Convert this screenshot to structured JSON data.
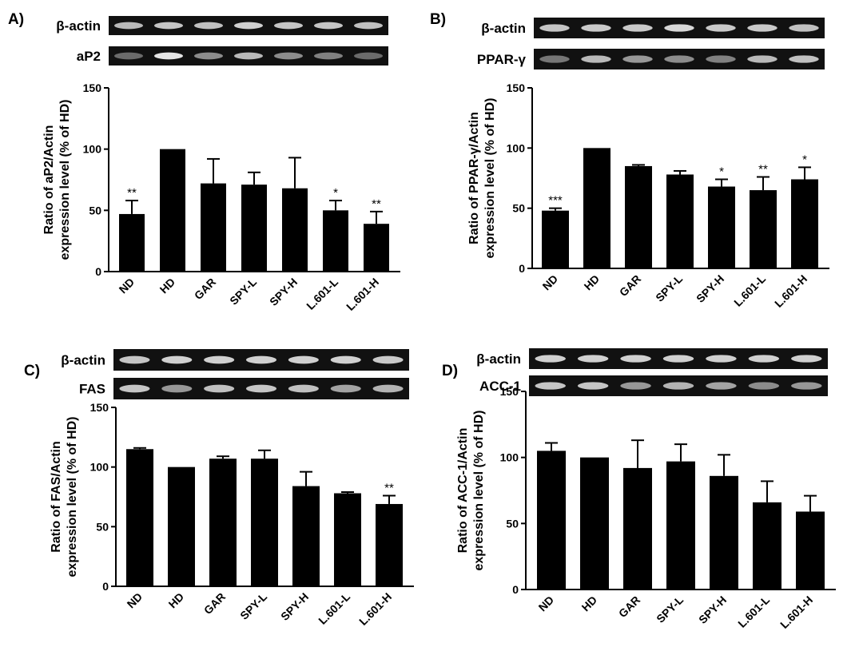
{
  "figure": {
    "gel_band_label_beta_actin": "β-actin",
    "bar_color": "#000000",
    "gel_background": "#111111",
    "band_color": "#f2f2f2"
  },
  "chart_data": [
    {
      "panel": "A)",
      "type": "bar",
      "gel_bands": [
        {
          "label": "β-actin",
          "intensities": [
            0.75,
            0.8,
            0.78,
            0.85,
            0.8,
            0.8,
            0.78
          ]
        },
        {
          "label": "aP2",
          "intensities": [
            0.4,
            0.95,
            0.55,
            0.75,
            0.55,
            0.5,
            0.4
          ]
        }
      ],
      "categories": [
        "ND",
        "HD",
        "GAR",
        "SPY-L",
        "SPY-H",
        "L.601-L",
        "L.601-H"
      ],
      "values": [
        47,
        100,
        72,
        71,
        68,
        50,
        39
      ],
      "errors": [
        11,
        0,
        20,
        10,
        25,
        8,
        10
      ],
      "significance": [
        "**",
        "",
        "",
        "",
        "",
        "*",
        "**"
      ],
      "ylabel_line1": "Ratio of aP2/Actin",
      "ylabel_line2": "expression level (% of HD)",
      "ylim": [
        0,
        150
      ],
      "yticks": [
        0,
        50,
        100,
        150
      ]
    },
    {
      "panel": "B)",
      "type": "bar",
      "gel_bands": [
        {
          "label": "β-actin",
          "intensities": [
            0.8,
            0.82,
            0.82,
            0.88,
            0.82,
            0.82,
            0.78
          ]
        },
        {
          "label": "PPAR-γ",
          "intensities": [
            0.45,
            0.75,
            0.6,
            0.55,
            0.5,
            0.75,
            0.78
          ]
        }
      ],
      "categories": [
        "ND",
        "HD",
        "GAR",
        "SPY-L",
        "SPY-H",
        "L.601-L",
        "L.601-H"
      ],
      "values": [
        48,
        100,
        85,
        78,
        68,
        65,
        74
      ],
      "errors": [
        2,
        0,
        1,
        3,
        6,
        11,
        10
      ],
      "significance": [
        "***",
        "",
        "",
        "",
        "*",
        "**",
        "*"
      ],
      "ylabel_line1": "Ratio of PPAR-γ/Actin",
      "ylabel_line2": "expression level (% of HD)",
      "ylim": [
        0,
        150
      ],
      "yticks": [
        0,
        50,
        100,
        150
      ]
    },
    {
      "panel": "C)",
      "type": "bar",
      "gel_bands": [
        {
          "label": "β-actin",
          "intensities": [
            0.8,
            0.85,
            0.85,
            0.85,
            0.85,
            0.85,
            0.82
          ]
        },
        {
          "label": "FAS",
          "intensities": [
            0.8,
            0.6,
            0.78,
            0.8,
            0.78,
            0.65,
            0.72
          ]
        }
      ],
      "categories": [
        "ND",
        "HD",
        "GAR",
        "SPY-L",
        "SPY-H",
        "L.601-L",
        "L.601-H"
      ],
      "values": [
        115,
        100,
        107,
        107,
        84,
        78,
        69
      ],
      "errors": [
        1,
        0,
        2,
        7,
        12,
        1,
        7
      ],
      "significance": [
        "",
        "",
        "",
        "",
        "",
        "",
        "**"
      ],
      "ylabel_line1": "Ratio of FAS/Actin",
      "ylabel_line2": "expression level (% of HD)",
      "ylim": [
        0,
        150
      ],
      "yticks": [
        0,
        50,
        100,
        150
      ]
    },
    {
      "panel": "D)",
      "type": "bar",
      "gel_bands": [
        {
          "label": "β-actin",
          "intensities": [
            0.85,
            0.85,
            0.85,
            0.85,
            0.85,
            0.85,
            0.85
          ]
        },
        {
          "label": "ACC-1",
          "intensities": [
            0.8,
            0.8,
            0.6,
            0.72,
            0.65,
            0.55,
            0.6
          ]
        }
      ],
      "categories": [
        "ND",
        "HD",
        "GAR",
        "SPY-L",
        "SPY-H",
        "L.601-L",
        "L.601-H"
      ],
      "values": [
        105,
        100,
        92,
        97,
        86,
        66,
        59
      ],
      "errors": [
        6,
        0,
        21,
        13,
        16,
        16,
        12
      ],
      "significance": [
        "",
        "",
        "",
        "",
        "",
        "",
        ""
      ],
      "ylabel_line1": "Ratio of ACC-1/Actin",
      "ylabel_line2": "expression level (% of HD)",
      "ylim": [
        0,
        150
      ],
      "yticks": [
        0,
        50,
        100,
        150
      ]
    }
  ]
}
